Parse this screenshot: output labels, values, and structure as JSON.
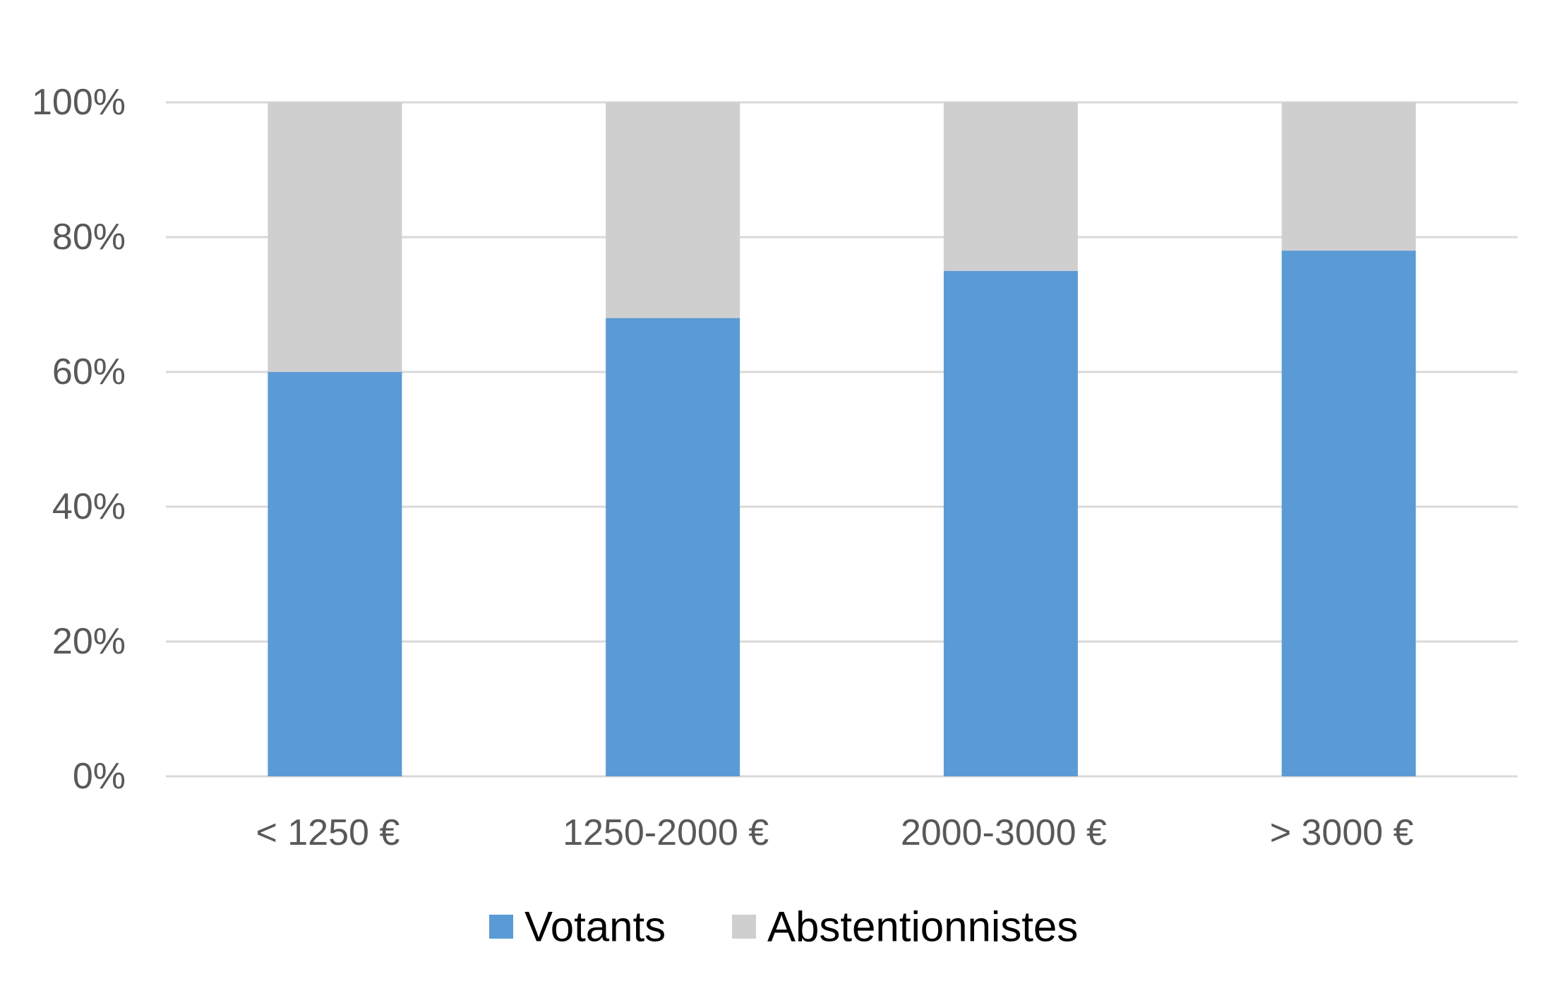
{
  "chart_data": {
    "type": "bar",
    "stacked": true,
    "categories": [
      "< 1250 €",
      "1250-2000 €",
      "2000-3000 €",
      "> 3000 €"
    ],
    "series": [
      {
        "name": "Votants",
        "values": [
          60,
          68,
          75,
          78
        ],
        "color": "#5b9bd5"
      },
      {
        "name": "Abstentionnistes",
        "values": [
          40,
          32,
          25,
          22
        ],
        "color": "#d0cfd0"
      }
    ],
    "ylim": [
      0,
      100
    ],
    "yticks": [
      "0%",
      "20%",
      "40%",
      "60%",
      "80%",
      "100%"
    ],
    "grid": true,
    "legend_position": "bottom"
  }
}
